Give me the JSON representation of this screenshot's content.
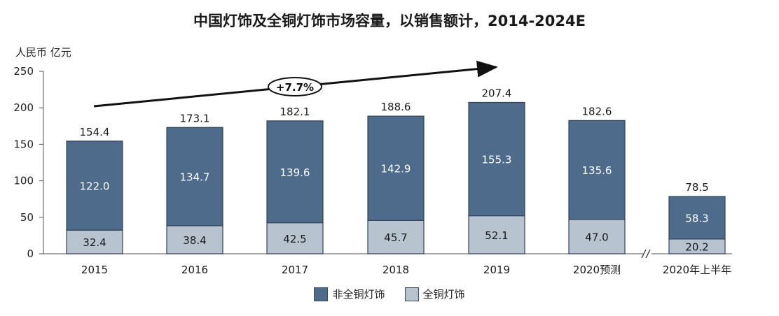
{
  "chart_data": {
    "type": "bar",
    "stacked": true,
    "title": "中国灯饰及全铜灯饰市场容量，以销售额计，2014-2024E",
    "unit_label": "人民币 亿元",
    "categories": [
      "2015",
      "2016",
      "2017",
      "2018",
      "2019",
      "2020预测",
      "2020年上半年"
    ],
    "series": [
      {
        "name": "全铜灯饰",
        "values": [
          32.4,
          38.4,
          42.5,
          45.7,
          52.1,
          47.0,
          20.2
        ]
      },
      {
        "name": "非全铜灯饰",
        "values": [
          122.0,
          134.7,
          139.6,
          142.9,
          155.3,
          135.6,
          58.3
        ]
      }
    ],
    "value_labels": {
      "bottom": [
        "32.4",
        "38.4",
        "42.5",
        "45.7",
        "52.1",
        "47.0",
        "20.2"
      ],
      "top": [
        "122.0",
        "134.7",
        "139.6",
        "142.9",
        "155.3",
        "135.6",
        "58.3"
      ]
    },
    "totals": [
      154.4,
      173.1,
      182.1,
      188.6,
      207.4,
      182.6,
      78.5
    ],
    "total_labels": [
      "154.4",
      "173.1",
      "182.1",
      "188.6",
      "207.4",
      "182.6",
      "78.5"
    ],
    "y_ticks": [
      "0",
      "50",
      "100",
      "150",
      "200",
      "250"
    ],
    "ylim": [
      0,
      250
    ],
    "cagr_label": "+7.7%",
    "axis_break": "after 2020预测",
    "legend_position": "bottom",
    "colors": {
      "dark": "#4e6b8c",
      "light": "#b8c3d0",
      "stroke": "#2f4458"
    }
  }
}
